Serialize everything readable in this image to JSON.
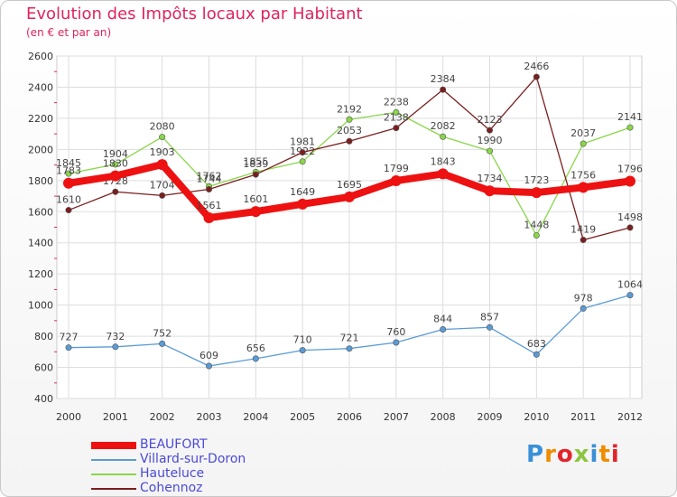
{
  "header": {
    "title": "Evolution des Impôts locaux par Habitant",
    "subtitle": "(en € et par an)"
  },
  "logo": {
    "text": "Proxiti",
    "letters": [
      {
        "ch": "P",
        "color": "#3a8fd8"
      },
      {
        "ch": "r",
        "color": "#f08c00"
      },
      {
        "ch": "o",
        "color": "#e3242b"
      },
      {
        "ch": "x",
        "color": "#8cc63f"
      },
      {
        "ch": "i",
        "color": "#3a8fd8"
      },
      {
        "ch": "t",
        "color": "#f08c00"
      },
      {
        "ch": "i",
        "color": "#e3242b"
      }
    ]
  },
  "chart_data": {
    "type": "line",
    "title": "Evolution des Impôts locaux par Habitant",
    "subtitle": "(en € et par an)",
    "x": [
      "2000",
      "2001",
      "2002",
      "2003",
      "2004",
      "2005",
      "2006",
      "2007",
      "2008",
      "2009",
      "2010",
      "2011",
      "2012"
    ],
    "ylim": [
      400,
      2600
    ],
    "yticks": [
      400,
      600,
      800,
      1000,
      1200,
      1400,
      1600,
      1800,
      2000,
      2200,
      2400,
      2600
    ],
    "grid": true,
    "legend_position": "bottom-left",
    "series": [
      {
        "name": "Villard-sur-Doron",
        "color": "#5a9bd5",
        "values": [
          727,
          732,
          752,
          609,
          656,
          710,
          721,
          760,
          844,
          857,
          683,
          978,
          1064
        ]
      },
      {
        "name": "Hauteluce",
        "color": "#8ad649",
        "values": [
          1845,
          1904,
          2080,
          1762,
          1855,
          1922,
          2192,
          2238,
          2082,
          1990,
          1448,
          2037,
          2141
        ]
      },
      {
        "name": "Cohennoz",
        "color": "#7a1f1f",
        "values": [
          1610,
          1728,
          1704,
          1744,
          1839,
          1981,
          2053,
          2138,
          2384,
          2123,
          2466,
          1419,
          1498
        ]
      },
      {
        "name": "BEAUFORT",
        "color": "#ee1111",
        "values": [
          1783,
          1830,
          1903,
          1561,
          1601,
          1649,
          1695,
          1799,
          1843,
          1734,
          1723,
          1756,
          1796
        ]
      }
    ]
  }
}
